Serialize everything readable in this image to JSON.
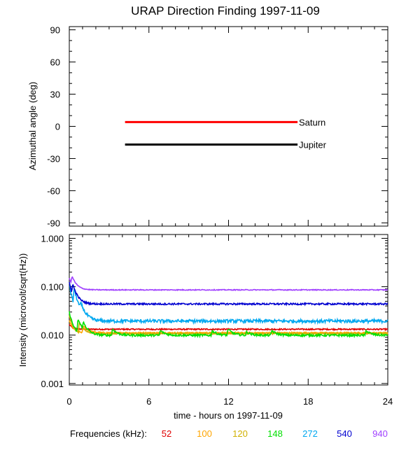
{
  "chart_data": [
    {
      "type": "line",
      "title": "URAP Direction Finding  1997-11-09",
      "xlabel": "",
      "ylabel": "Azimuthal angle (deg)",
      "xlim": [
        0,
        24
      ],
      "ylim": [
        -93,
        93
      ],
      "yticks": [
        90,
        60,
        30,
        0,
        -30,
        -60,
        -90
      ],
      "ytick_labels": [
        "90",
        "60",
        "30",
        "0",
        "-30",
        "-60",
        "-90"
      ],
      "series": [
        {
          "name": "Saturn",
          "color": "#ff0000",
          "x": [
            4.2,
            17.2
          ],
          "y": [
            4,
            4
          ],
          "label_x": 17.3
        },
        {
          "name": "Jupiter",
          "color": "#000000",
          "x": [
            4.2,
            17.2
          ],
          "y": [
            -17,
            -17
          ],
          "label_x": 17.3
        }
      ]
    },
    {
      "type": "line",
      "title": "",
      "xlabel": "time - hours on 1997-11-09",
      "ylabel": "Intensity (microvolt/sqrt(Hz))",
      "xlim": [
        0,
        24
      ],
      "ylim": [
        0.00093,
        1.2
      ],
      "yscale": "log",
      "yticks": [
        1.0,
        0.1,
        0.01,
        0.001
      ],
      "ytick_labels": [
        "1.000",
        "0.100",
        "0.010",
        "0.001"
      ],
      "xticks": [
        0,
        6,
        12,
        18,
        24
      ],
      "xtick_labels": [
        "0",
        "6",
        "12",
        "18",
        "24"
      ],
      "legend_title": "Frequencies (kHz):",
      "series": [
        {
          "name": "52",
          "color": "#e00000",
          "baseline": 0.0132,
          "start": 0.0165,
          "noise": 0.03,
          "bumps": []
        },
        {
          "name": "100",
          "color": "#ffa500",
          "baseline": 0.0112,
          "start": 0.02,
          "noise": 0.03,
          "bumps": [
            [
              1.0,
              0.005
            ]
          ]
        },
        {
          "name": "120",
          "color": "#d0b000",
          "baseline": 0.0107,
          "start": 0.025,
          "noise": 0.03,
          "bumps": [
            [
              0.7,
              0.008
            ]
          ]
        },
        {
          "name": "148",
          "color": "#00e000",
          "baseline": 0.0099,
          "start": 0.03,
          "noise": 0.05,
          "bumps": [
            [
              0.6,
              0.012
            ],
            [
              1.0,
              0.006
            ],
            [
              3.2,
              0.004
            ],
            [
              6.8,
              0.003
            ],
            [
              10.7,
              0.003
            ],
            [
              11.9,
              0.004
            ],
            [
              13.3,
              0.002
            ],
            [
              15.2,
              0.003
            ],
            [
              22.3,
              0.003
            ]
          ]
        },
        {
          "name": "272",
          "color": "#00a8f0",
          "baseline": 0.0195,
          "start": 0.11,
          "noise": 0.08,
          "bumps": [
            [
              0.3,
              0.06
            ],
            [
              0.8,
              0.015
            ]
          ]
        },
        {
          "name": "540",
          "color": "#0000d0",
          "baseline": 0.044,
          "start": 0.12,
          "noise": 0.04,
          "bumps": [
            [
              0.2,
              0.05
            ]
          ]
        },
        {
          "name": "940",
          "color": "#a040ff",
          "baseline": 0.086,
          "start": 0.15,
          "noise": 0.02,
          "bumps": [
            [
              0.15,
              0.06
            ]
          ]
        }
      ]
    }
  ]
}
